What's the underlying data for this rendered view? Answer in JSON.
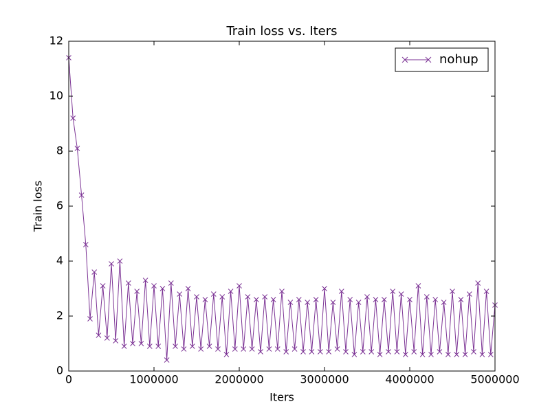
{
  "chart_data": {
    "type": "line",
    "title": "Train loss  vs. Iters",
    "x_label": "Iters",
    "y_label": "Train loss",
    "x": [
      0,
      50000,
      100000,
      150000,
      200000,
      250000,
      300000,
      350000,
      400000,
      450000,
      500000,
      550000,
      600000,
      650000,
      700000,
      750000,
      800000,
      850000,
      900000,
      950000,
      1000000,
      1050000,
      1100000,
      1150000,
      1200000,
      1250000,
      1300000,
      1350000,
      1400000,
      1450000,
      1500000,
      1550000,
      1600000,
      1650000,
      1700000,
      1750000,
      1800000,
      1850000,
      1900000,
      1950000,
      2000000,
      2050000,
      2100000,
      2150000,
      2200000,
      2250000,
      2300000,
      2350000,
      2400000,
      2450000,
      2500000,
      2550000,
      2600000,
      2650000,
      2700000,
      2750000,
      2800000,
      2850000,
      2900000,
      2950000,
      3000000,
      3050000,
      3100000,
      3150000,
      3200000,
      3250000,
      3300000,
      3350000,
      3400000,
      3450000,
      3500000,
      3550000,
      3600000,
      3650000,
      3700000,
      3750000,
      3800000,
      3850000,
      3900000,
      3950000,
      4000000,
      4050000,
      4100000,
      4150000,
      4200000,
      4250000,
      4300000,
      4350000,
      4400000,
      4450000,
      4500000,
      4550000,
      4600000,
      4650000,
      4700000,
      4750000,
      4800000,
      4850000,
      4900000,
      4950000,
      5000000
    ],
    "series": [
      {
        "name": "nohup",
        "color": "#7b3294",
        "marker": "x",
        "values": [
          11.4,
          9.2,
          8.1,
          6.4,
          4.6,
          1.9,
          3.6,
          1.3,
          3.1,
          1.2,
          3.9,
          1.1,
          4.0,
          0.9,
          3.2,
          1.0,
          2.9,
          1.0,
          3.3,
          0.9,
          3.1,
          0.9,
          3.0,
          0.4,
          3.2,
          0.9,
          2.8,
          0.8,
          3.0,
          0.9,
          2.7,
          0.8,
          2.6,
          0.9,
          2.8,
          0.8,
          2.7,
          0.6,
          2.9,
          0.8,
          3.1,
          0.8,
          2.7,
          0.8,
          2.6,
          0.7,
          2.7,
          0.8,
          2.6,
          0.8,
          2.9,
          0.7,
          2.5,
          0.8,
          2.6,
          0.7,
          2.5,
          0.7,
          2.6,
          0.7,
          3.0,
          0.7,
          2.5,
          0.8,
          2.9,
          0.7,
          2.6,
          0.6,
          2.5,
          0.7,
          2.7,
          0.7,
          2.6,
          0.6,
          2.6,
          0.7,
          2.9,
          0.7,
          2.8,
          0.6,
          2.6,
          0.7,
          3.1,
          0.6,
          2.7,
          0.6,
          2.6,
          0.7,
          2.5,
          0.6,
          2.9,
          0.6,
          2.6,
          0.6,
          2.8,
          0.7,
          3.2,
          0.6,
          2.9,
          0.6,
          2.4
        ]
      }
    ],
    "xlim": [
      0,
      5000000
    ],
    "ylim": [
      0,
      12
    ],
    "xticks": [
      0,
      1000000,
      2000000,
      3000000,
      4000000,
      5000000
    ],
    "yticks": [
      0,
      2,
      4,
      6,
      8,
      10,
      12
    ],
    "legend": "upper right"
  }
}
